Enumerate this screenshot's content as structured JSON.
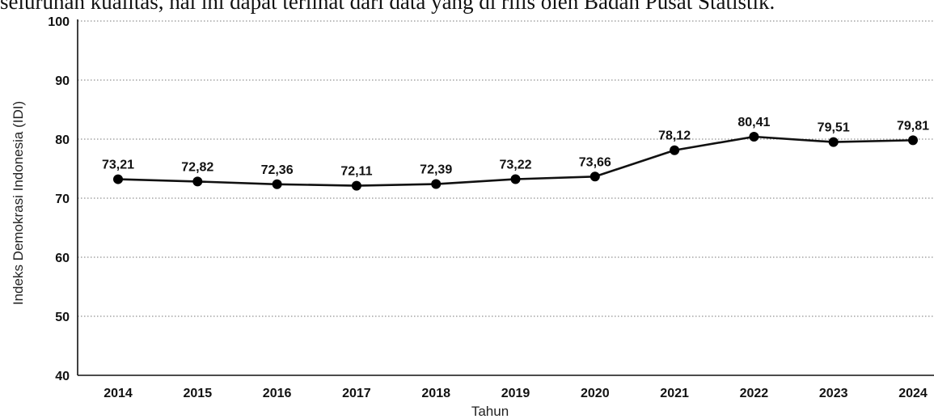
{
  "page": {
    "caption": "seluruhan kualitas, hal ini dapat terlihat dari data yang di rilis oleh Badan Pusat Statistik."
  },
  "chart_data": {
    "type": "line",
    "title": "",
    "xlabel": "Tahun",
    "ylabel": "Indeks Demokrasi Indonesia (IDI)",
    "x": [
      "2014",
      "2015",
      "2016",
      "2017",
      "2018",
      "2019",
      "2020",
      "2021",
      "2022",
      "2023",
      "2024"
    ],
    "values": [
      73.21,
      72.82,
      72.36,
      72.11,
      72.39,
      73.22,
      73.66,
      78.12,
      80.41,
      79.51,
      79.81
    ],
    "value_labels": [
      "73,21",
      "72,82",
      "72,36",
      "72,11",
      "72,39",
      "73,22",
      "73,66",
      "78,12",
      "80,41",
      "79,51",
      "79,81"
    ],
    "ylim": [
      40,
      100
    ],
    "yticks": [
      "40",
      "50",
      "60",
      "70",
      "80",
      "90",
      "100"
    ],
    "grid": "horizontal-dotted",
    "legend": "none",
    "line_color": "#111111",
    "marker_color": "#000000"
  }
}
